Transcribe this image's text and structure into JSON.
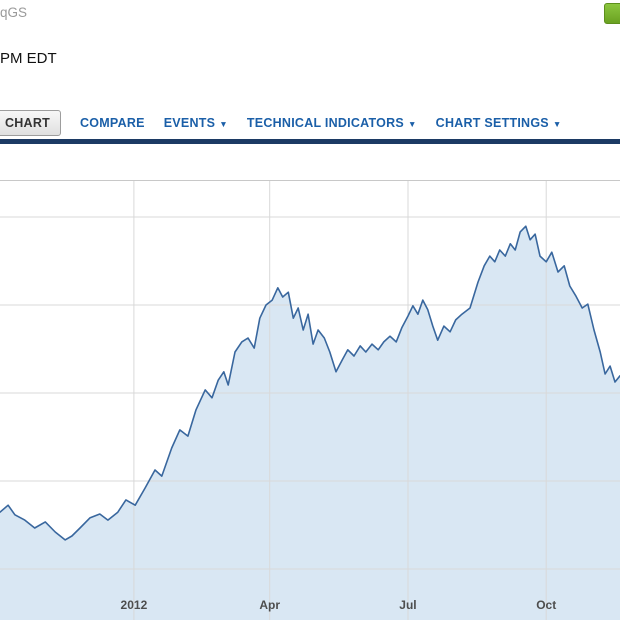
{
  "header": {
    "ticker_fragment": "qGS",
    "timestamp_fragment": "PM EDT"
  },
  "toolbar": {
    "items": [
      {
        "label": "CHART",
        "active": true,
        "dropdown": false
      },
      {
        "label": "COMPARE",
        "active": false,
        "dropdown": false
      },
      {
        "label": "EVENTS",
        "active": false,
        "dropdown": true
      },
      {
        "label": "TECHNICAL INDICATORS",
        "active": false,
        "dropdown": true
      },
      {
        "label": "CHART SETTINGS",
        "active": false,
        "dropdown": true
      }
    ]
  },
  "icons": {
    "dropdown_arrow": "▼"
  },
  "colors": {
    "link_blue": "#1b5fa8",
    "navy_bar": "#1c3a64",
    "green_button": "#76b22b",
    "line": "#39679e",
    "fill": "#d9e7f3",
    "grid": "#d9d9d9",
    "border": "#c8c8c8"
  },
  "chart_data": {
    "type": "area",
    "title": "",
    "xlabel": "",
    "ylabel": "",
    "ylim": [
      0,
      100
    ],
    "grid": true,
    "legend": "none",
    "line_color": "#39679e",
    "fill_color": "#d9e7f3",
    "grid_color": "#d9d9d9",
    "border_color": "#c8c8c8",
    "x_ticks": [
      {
        "label": "2012",
        "pos": 0.216
      },
      {
        "label": "Apr",
        "pos": 0.435
      },
      {
        "label": "Jul",
        "pos": 0.658
      },
      {
        "label": "Oct",
        "pos": 0.881
      }
    ],
    "h_gridlines": [
      0.084,
      0.284,
      0.484,
      0.684,
      0.884
    ],
    "points": [
      [
        0.0,
        24.5
      ],
      [
        0.013,
        26.1
      ],
      [
        0.024,
        23.9
      ],
      [
        0.04,
        22.7
      ],
      [
        0.056,
        20.9
      ],
      [
        0.073,
        22.3
      ],
      [
        0.089,
        20.0
      ],
      [
        0.105,
        18.2
      ],
      [
        0.116,
        19.1
      ],
      [
        0.129,
        20.9
      ],
      [
        0.145,
        23.2
      ],
      [
        0.161,
        24.1
      ],
      [
        0.174,
        22.7
      ],
      [
        0.19,
        24.5
      ],
      [
        0.203,
        27.3
      ],
      [
        0.218,
        26.1
      ],
      [
        0.234,
        30.0
      ],
      [
        0.25,
        34.1
      ],
      [
        0.261,
        32.7
      ],
      [
        0.277,
        39.1
      ],
      [
        0.29,
        43.2
      ],
      [
        0.303,
        41.8
      ],
      [
        0.316,
        47.7
      ],
      [
        0.331,
        52.3
      ],
      [
        0.342,
        50.5
      ],
      [
        0.352,
        54.5
      ],
      [
        0.361,
        56.4
      ],
      [
        0.368,
        53.4
      ],
      [
        0.379,
        60.9
      ],
      [
        0.39,
        63.2
      ],
      [
        0.4,
        64.1
      ],
      [
        0.41,
        61.8
      ],
      [
        0.419,
        68.6
      ],
      [
        0.429,
        71.6
      ],
      [
        0.439,
        72.7
      ],
      [
        0.448,
        75.5
      ],
      [
        0.456,
        73.4
      ],
      [
        0.465,
        74.5
      ],
      [
        0.473,
        68.6
      ],
      [
        0.481,
        70.9
      ],
      [
        0.489,
        65.9
      ],
      [
        0.497,
        69.5
      ],
      [
        0.505,
        62.7
      ],
      [
        0.513,
        65.9
      ],
      [
        0.523,
        64.1
      ],
      [
        0.532,
        60.9
      ],
      [
        0.542,
        56.4
      ],
      [
        0.552,
        59.1
      ],
      [
        0.561,
        61.4
      ],
      [
        0.571,
        60.0
      ],
      [
        0.581,
        62.3
      ],
      [
        0.59,
        60.9
      ],
      [
        0.6,
        62.7
      ],
      [
        0.61,
        61.4
      ],
      [
        0.619,
        63.2
      ],
      [
        0.629,
        64.5
      ],
      [
        0.639,
        63.2
      ],
      [
        0.648,
        66.4
      ],
      [
        0.658,
        69.1
      ],
      [
        0.666,
        71.4
      ],
      [
        0.674,
        69.5
      ],
      [
        0.682,
        72.7
      ],
      [
        0.69,
        70.5
      ],
      [
        0.698,
        66.8
      ],
      [
        0.706,
        63.6
      ],
      [
        0.716,
        66.8
      ],
      [
        0.726,
        65.5
      ],
      [
        0.735,
        68.2
      ],
      [
        0.745,
        69.5
      ],
      [
        0.758,
        70.9
      ],
      [
        0.771,
        76.8
      ],
      [
        0.781,
        80.5
      ],
      [
        0.79,
        82.7
      ],
      [
        0.798,
        81.4
      ],
      [
        0.806,
        84.1
      ],
      [
        0.815,
        82.7
      ],
      [
        0.823,
        85.5
      ],
      [
        0.831,
        84.1
      ],
      [
        0.839,
        88.2
      ],
      [
        0.848,
        89.5
      ],
      [
        0.855,
        86.4
      ],
      [
        0.863,
        87.7
      ],
      [
        0.871,
        82.7
      ],
      [
        0.881,
        81.4
      ],
      [
        0.89,
        83.6
      ],
      [
        0.9,
        79.1
      ],
      [
        0.91,
        80.5
      ],
      [
        0.919,
        75.9
      ],
      [
        0.929,
        73.6
      ],
      [
        0.939,
        70.9
      ],
      [
        0.948,
        71.8
      ],
      [
        0.958,
        65.9
      ],
      [
        0.968,
        60.9
      ],
      [
        0.976,
        55.9
      ],
      [
        0.984,
        57.7
      ],
      [
        0.992,
        54.1
      ],
      [
        1.0,
        55.5
      ]
    ]
  }
}
